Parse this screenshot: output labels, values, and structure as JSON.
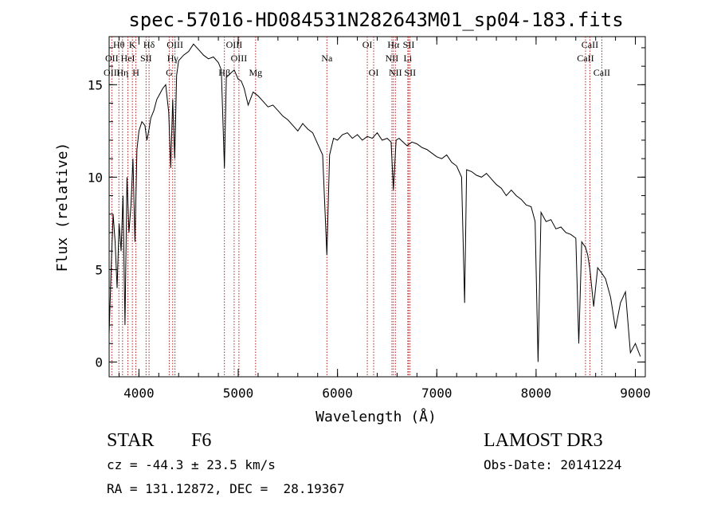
{
  "chart_data": {
    "type": "line",
    "title": "spec-57016-HD084531N282643M01_sp04-183.fits",
    "xlabel": "Wavelength (Å)",
    "ylabel": "Flux (relative)",
    "xlim": [
      3700,
      9100
    ],
    "ylim": [
      -0.8,
      17.6
    ],
    "x_ticks": [
      4000,
      5000,
      6000,
      7000,
      8000,
      9000
    ],
    "x_tick_labels": [
      "4000",
      "5000",
      "6000",
      "7000",
      "8000",
      "9000"
    ],
    "y_ticks": [
      0,
      5,
      10,
      15
    ],
    "y_tick_labels": [
      "0",
      "5",
      "10",
      "15"
    ],
    "line_color": "#000000",
    "marker_color": "#b22222",
    "spectrum": {
      "x": [
        3700,
        3720,
        3740,
        3760,
        3780,
        3800,
        3820,
        3840,
        3860,
        3880,
        3900,
        3920,
        3940,
        3960,
        3980,
        4000,
        4030,
        4060,
        4080,
        4102,
        4120,
        4150,
        4180,
        4210,
        4240,
        4270,
        4300,
        4320,
        4340,
        4360,
        4380,
        4400,
        4450,
        4500,
        4550,
        4600,
        4650,
        4700,
        4750,
        4800,
        4830,
        4861,
        4880,
        4920,
        4960,
        5000,
        5030,
        5060,
        5100,
        5150,
        5200,
        5250,
        5300,
        5350,
        5400,
        5450,
        5500,
        5550,
        5600,
        5650,
        5700,
        5750,
        5800,
        5850,
        5893,
        5920,
        5960,
        6000,
        6050,
        6100,
        6150,
        6200,
        6250,
        6300,
        6350,
        6400,
        6450,
        6500,
        6540,
        6563,
        6590,
        6620,
        6660,
        6700,
        6750,
        6800,
        6850,
        6900,
        6950,
        7000,
        7050,
        7100,
        7150,
        7200,
        7250,
        7280,
        7300,
        7350,
        7400,
        7450,
        7500,
        7550,
        7600,
        7650,
        7700,
        7750,
        7800,
        7850,
        7900,
        7950,
        7990,
        8020,
        8050,
        8100,
        8150,
        8200,
        8250,
        8300,
        8350,
        8400,
        8430,
        8460,
        8498,
        8520,
        8542,
        8580,
        8620,
        8662,
        8700,
        8750,
        8800,
        8850,
        8900,
        8950,
        9000,
        9050
      ],
      "y": [
        1.5,
        5.0,
        8.0,
        6.5,
        4.0,
        7.5,
        6.0,
        9.0,
        2.0,
        10.0,
        7.0,
        8.5,
        11.0,
        6.5,
        11.5,
        12.5,
        13.0,
        12.8,
        12.0,
        12.6,
        13.2,
        13.6,
        14.2,
        14.5,
        14.8,
        15.0,
        13.5,
        10.5,
        14.2,
        11.0,
        15.5,
        16.3,
        16.6,
        16.8,
        17.2,
        16.9,
        16.6,
        16.4,
        16.5,
        16.2,
        15.8,
        10.5,
        15.4,
        15.6,
        15.8,
        15.3,
        15.2,
        14.8,
        13.9,
        14.6,
        14.4,
        14.1,
        13.8,
        13.9,
        13.6,
        13.3,
        13.1,
        12.8,
        12.5,
        12.9,
        12.6,
        12.4,
        11.8,
        11.2,
        5.8,
        11.2,
        12.1,
        12.0,
        12.3,
        12.4,
        12.1,
        12.3,
        12.0,
        12.2,
        12.1,
        12.4,
        12.0,
        12.1,
        11.9,
        9.3,
        12.0,
        12.1,
        11.9,
        11.7,
        11.9,
        11.8,
        11.6,
        11.5,
        11.3,
        11.1,
        11.0,
        11.2,
        10.8,
        10.6,
        10.0,
        3.2,
        10.4,
        10.3,
        10.1,
        10.0,
        10.2,
        9.9,
        9.6,
        9.4,
        9.0,
        9.3,
        9.0,
        8.8,
        8.5,
        8.4,
        7.6,
        0.0,
        8.1,
        7.6,
        7.7,
        7.2,
        7.3,
        7.0,
        6.9,
        6.7,
        1.0,
        6.5,
        6.2,
        5.8,
        5.0,
        3.0,
        5.1,
        4.8,
        4.5,
        3.5,
        1.8,
        3.2,
        3.8,
        0.5,
        1.0,
        0.3
      ]
    },
    "lines": [
      {
        "name": "Hθ",
        "wavelength": 3798,
        "row": 0
      },
      {
        "name": "K",
        "wavelength": 3934,
        "row": 0
      },
      {
        "name": "Hδ",
        "wavelength": 4102,
        "row": 0
      },
      {
        "name": "OIII",
        "wavelength": 4363,
        "row": 0
      },
      {
        "name": "OIII",
        "wavelength": 4959,
        "row": 0
      },
      {
        "name": "OI",
        "wavelength": 6300,
        "row": 0
      },
      {
        "name": "Hα",
        "wavelength": 6563,
        "row": 0
      },
      {
        "name": "SII",
        "wavelength": 6717,
        "row": 0
      },
      {
        "name": "CaII",
        "wavelength": 8542,
        "row": 0
      },
      {
        "name": "OII",
        "wavelength": 3727,
        "row": 1
      },
      {
        "name": "HeI",
        "wavelength": 3889,
        "row": 1
      },
      {
        "name": "SII",
        "wavelength": 4072,
        "row": 1
      },
      {
        "name": "Hγ",
        "wavelength": 4340,
        "row": 1
      },
      {
        "name": "OIII",
        "wavelength": 5007,
        "row": 1
      },
      {
        "name": "Na",
        "wavelength": 5893,
        "row": 1
      },
      {
        "name": "NII",
        "wavelength": 6548,
        "row": 1
      },
      {
        "name": "Li",
        "wavelength": 6708,
        "row": 1
      },
      {
        "name": "CaII",
        "wavelength": 8498,
        "row": 1
      },
      {
        "name": "OIII",
        "wavelength": 3727,
        "row": 2
      },
      {
        "name": "Hη",
        "wavelength": 3835,
        "row": 2
      },
      {
        "name": "H",
        "wavelength": 3969,
        "row": 2
      },
      {
        "name": "G",
        "wavelength": 4305,
        "row": 2
      },
      {
        "name": "Hβ",
        "wavelength": 4861,
        "row": 2
      },
      {
        "name": "Mg",
        "wavelength": 5175,
        "row": 2
      },
      {
        "name": "OI",
        "wavelength": 6364,
        "row": 2
      },
      {
        "name": "NII",
        "wavelength": 6583,
        "row": 2
      },
      {
        "name": "SII",
        "wavelength": 6731,
        "row": 2
      },
      {
        "name": "CaII",
        "wavelength": 8662,
        "row": 2
      }
    ]
  },
  "info": {
    "class_label": "STAR",
    "subclass": "F6",
    "survey": "LAMOST DR3",
    "cz": "cz = -44.3 ± 23.5 km/s",
    "obs_date": "Obs-Date: 20141224",
    "coords": "RA = 131.12872, DEC =  28.19367"
  }
}
